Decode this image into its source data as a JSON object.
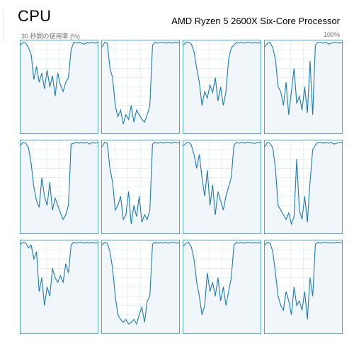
{
  "header": {
    "title": "CPU",
    "processor": "AMD Ryzen 5 2600X Six-Core Processor",
    "axis_caption": "30 秒間の使用率 (%)",
    "axis_max": "100%"
  },
  "colors": {
    "line": "#1a7ab8",
    "fill": "#f1f6fb",
    "grid": "#d6e7f3",
    "border": "#4ea3d2"
  },
  "chart_data": {
    "type": "line",
    "x_range_seconds": [
      0,
      30
    ],
    "y_range_percent": [
      0,
      100
    ],
    "grid": true,
    "series": [
      {
        "cpu": 0,
        "values": [
          95,
          98,
          97,
          92,
          85,
          58,
          72,
          55,
          65,
          48,
          68,
          50,
          62,
          40,
          65,
          52,
          45,
          55,
          60,
          90,
          98,
          97,
          98,
          97,
          96,
          98,
          97,
          98,
          97,
          98
        ]
      },
      {
        "cpu": 1,
        "values": [
          93,
          98,
          97,
          70,
          60,
          30,
          18,
          25,
          10,
          20,
          15,
          30,
          12,
          25,
          20,
          15,
          12,
          20,
          30,
          95,
          98,
          97,
          98,
          98,
          97,
          98,
          97,
          98,
          98,
          97
        ]
      },
      {
        "cpu": 2,
        "values": [
          95,
          98,
          98,
          96,
          88,
          70,
          55,
          30,
          45,
          38,
          52,
          44,
          60,
          35,
          50,
          30,
          45,
          80,
          92,
          95,
          98,
          97,
          98,
          97,
          98,
          98,
          97,
          98,
          97,
          98
        ]
      },
      {
        "cpu": 3,
        "values": [
          93,
          97,
          98,
          92,
          80,
          50,
          45,
          30,
          55,
          20,
          45,
          70,
          32,
          40,
          25,
          50,
          22,
          78,
          20,
          95,
          98,
          98,
          97,
          98,
          96,
          97,
          98,
          98,
          97,
          98
        ]
      },
      {
        "cpu": 4,
        "values": [
          95,
          98,
          97,
          92,
          75,
          50,
          35,
          28,
          60,
          40,
          30,
          55,
          25,
          38,
          30,
          22,
          15,
          20,
          30,
          96,
          97,
          98,
          97,
          98,
          97,
          98,
          96,
          98,
          97,
          98
        ]
      },
      {
        "cpu": 5,
        "values": [
          93,
          98,
          97,
          70,
          55,
          25,
          30,
          40,
          15,
          20,
          45,
          10,
          30,
          18,
          40,
          12,
          20,
          15,
          25,
          96,
          98,
          97,
          98,
          97,
          98,
          98,
          97,
          98,
          98,
          97
        ]
      },
      {
        "cpu": 6,
        "values": [
          94,
          97,
          98,
          95,
          85,
          70,
          85,
          60,
          40,
          68,
          30,
          52,
          20,
          45,
          35,
          25,
          40,
          50,
          60,
          95,
          98,
          97,
          98,
          97,
          98,
          98,
          97,
          97,
          98,
          98
        ]
      },
      {
        "cpu": 7,
        "values": [
          93,
          98,
          97,
          92,
          70,
          30,
          25,
          20,
          15,
          22,
          10,
          18,
          80,
          25,
          15,
          40,
          12,
          55,
          90,
          95,
          98,
          98,
          97,
          98,
          97,
          98,
          96,
          97,
          98,
          98
        ]
      },
      {
        "cpu": 8,
        "values": [
          96,
          98,
          97,
          92,
          95,
          80,
          88,
          45,
          60,
          30,
          50,
          40,
          70,
          60,
          55,
          62,
          55,
          75,
          65,
          95,
          98,
          97,
          98,
          98,
          97,
          98,
          97,
          98,
          97,
          98
        ]
      },
      {
        "cpu": 9,
        "values": [
          95,
          98,
          97,
          88,
          70,
          40,
          20,
          15,
          12,
          15,
          10,
          12,
          15,
          10,
          20,
          28,
          12,
          35,
          40,
          96,
          98,
          97,
          98,
          97,
          98,
          97,
          98,
          98,
          97,
          98
        ]
      },
      {
        "cpu": 10,
        "values": [
          94,
          97,
          98,
          93,
          80,
          55,
          40,
          20,
          30,
          65,
          45,
          55,
          40,
          60,
          35,
          50,
          30,
          45,
          60,
          95,
          98,
          97,
          98,
          97,
          98,
          98,
          97,
          98,
          97,
          98
        ]
      },
      {
        "cpu": 11,
        "values": [
          95,
          98,
          97,
          88,
          65,
          40,
          30,
          25,
          45,
          35,
          20,
          50,
          30,
          35,
          25,
          45,
          15,
          60,
          40,
          96,
          98,
          97,
          98,
          98,
          97,
          98,
          97,
          98,
          98,
          97
        ]
      }
    ]
  }
}
